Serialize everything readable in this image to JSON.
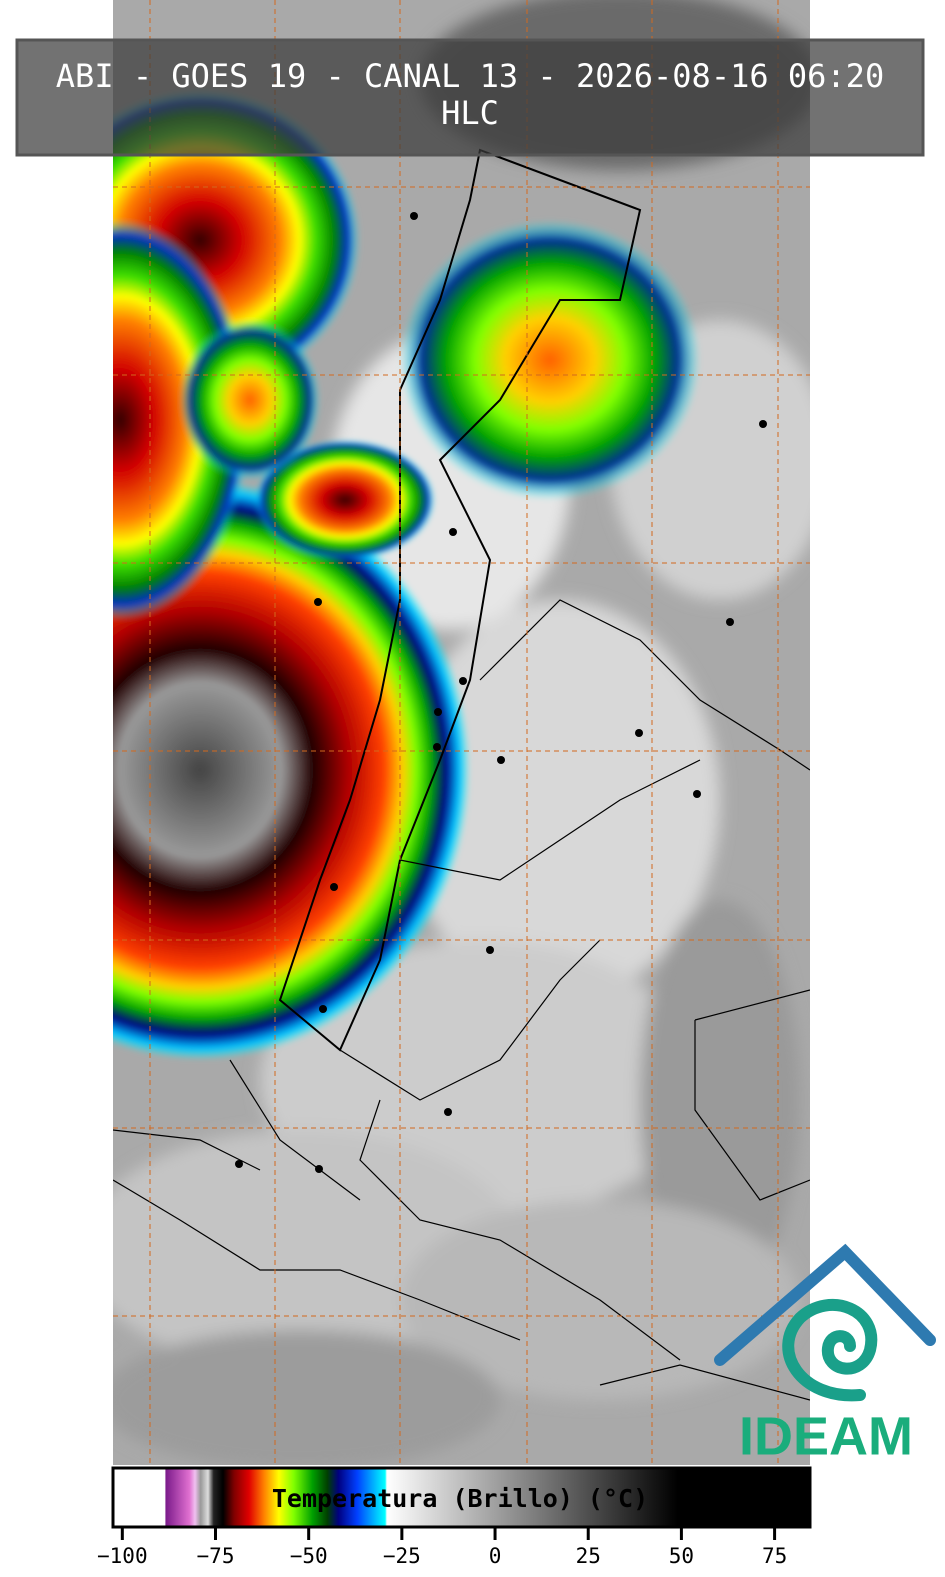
{
  "header": {
    "title": "ABI - GOES 19 - CANAL 13 - 2026-08-16 06:20",
    "subtitle": "HLC"
  },
  "logo": {
    "text": "IDEAM"
  },
  "chart_data": {
    "type": "colorbar",
    "title": "Temperatura (Brillo) (°C)",
    "xlim": [
      -102.5,
      84.5
    ],
    "xticks": [
      {
        "value": -100,
        "label": "−100"
      },
      {
        "value": -75,
        "label": "−75"
      },
      {
        "value": -50,
        "label": "−50"
      },
      {
        "value": -25,
        "label": "−25"
      },
      0,
      25,
      50,
      75
    ],
    "stops": [
      {
        "value": -102.5,
        "color": "#ffffff"
      },
      {
        "value": -88.5,
        "color": "#ffffff"
      },
      {
        "value": -88.4,
        "color": "#7a1a8a"
      },
      {
        "value": -82,
        "color": "#e070d0"
      },
      {
        "value": -80.5,
        "color": "#f0c0f0"
      },
      {
        "value": -79,
        "color": "#999999"
      },
      {
        "value": -77,
        "color": "#dddddd"
      },
      {
        "value": -75.5,
        "color": "#222222"
      },
      {
        "value": -73,
        "color": "#000000"
      },
      {
        "value": -70,
        "color": "#800000"
      },
      {
        "value": -66,
        "color": "#e00000"
      },
      {
        "value": -62,
        "color": "#ff8000"
      },
      {
        "value": -58,
        "color": "#ffff00"
      },
      {
        "value": -54,
        "color": "#80ff00"
      },
      {
        "value": -49,
        "color": "#00a000"
      },
      {
        "value": -45,
        "color": "#004000"
      },
      {
        "value": -42,
        "color": "#000080"
      },
      {
        "value": -37,
        "color": "#0040ff"
      },
      {
        "value": -32,
        "color": "#00c0ff"
      },
      {
        "value": -29.5,
        "color": "#00ffff"
      },
      {
        "value": -29,
        "color": "#ffffff"
      },
      {
        "value": 49,
        "color": "#000000"
      },
      {
        "value": 84.5,
        "color": "#000000"
      }
    ]
  }
}
